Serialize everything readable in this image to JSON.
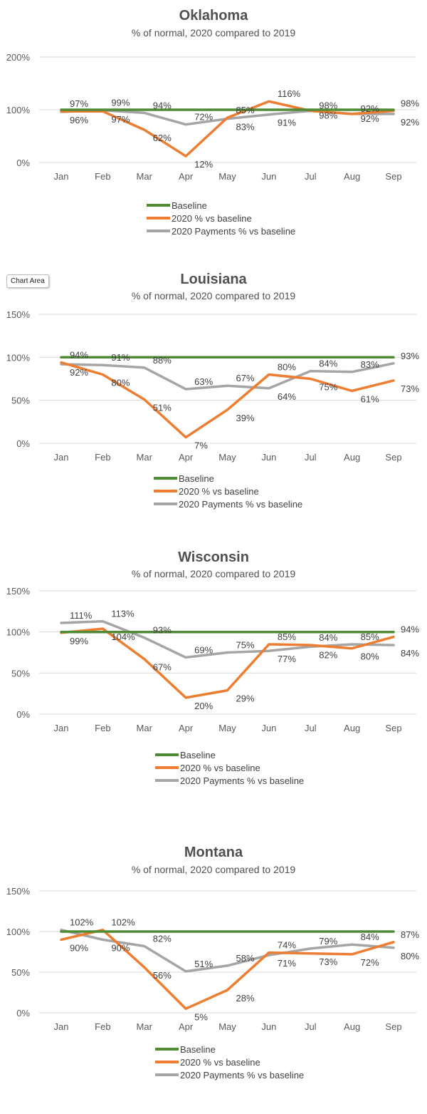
{
  "tooltip": "Chart Area",
  "legend": [
    "Baseline",
    "2020 % vs baseline",
    "2020 Payments % vs baseline"
  ],
  "colors": {
    "baseline": "#4f8a34",
    "orange": "#ed7d31",
    "gray": "#a5a5a5"
  },
  "chart_data": [
    {
      "type": "line",
      "title": "Oklahoma",
      "subtitle": "% of normal, 2020 compared to 2019",
      "categories": [
        "Jan",
        "Feb",
        "Mar",
        "Apr",
        "May",
        "Jun",
        "Jul",
        "Aug",
        "Sep"
      ],
      "ylim": [
        0,
        200
      ],
      "yticks": [
        "0%",
        "100%",
        "200%"
      ],
      "series": [
        {
          "name": "Baseline",
          "values": [
            100,
            100,
            100,
            100,
            100,
            100,
            100,
            100,
            100
          ]
        },
        {
          "name": "2020 % vs baseline",
          "values": [
            97,
            97,
            62,
            12,
            85,
            116,
            98,
            92,
            98
          ]
        },
        {
          "name": "2020 Payments % vs baseline",
          "values": [
            96,
            99,
            94,
            72,
            83,
            91,
            98,
            92,
            92
          ]
        }
      ]
    },
    {
      "type": "line",
      "title": "Louisiana",
      "subtitle": "% of normal, 2020 compared to 2019",
      "categories": [
        "Jan",
        "Feb",
        "Mar",
        "Apr",
        "May",
        "Jun",
        "Jul",
        "Aug",
        "Sep"
      ],
      "ylim": [
        0,
        150
      ],
      "yticks": [
        "0%",
        "50%",
        "100%",
        "150%"
      ],
      "series": [
        {
          "name": "Baseline",
          "values": [
            100,
            100,
            100,
            100,
            100,
            100,
            100,
            100,
            100
          ]
        },
        {
          "name": "2020 % vs baseline",
          "values": [
            94,
            80,
            51,
            7,
            39,
            80,
            75,
            61,
            73
          ]
        },
        {
          "name": "2020 Payments % vs baseline",
          "values": [
            92,
            91,
            88,
            63,
            67,
            64,
            84,
            83,
            93
          ]
        }
      ]
    },
    {
      "type": "line",
      "title": "Wisconsin",
      "subtitle": "% of normal, 2020 compared to 2019",
      "categories": [
        "Jan",
        "Feb",
        "Mar",
        "Apr",
        "May",
        "Jun",
        "Jul",
        "Aug",
        "Sep"
      ],
      "ylim": [
        0,
        150
      ],
      "yticks": [
        "0%",
        "50%",
        "100%",
        "150%"
      ],
      "series": [
        {
          "name": "Baseline",
          "values": [
            100,
            100,
            100,
            100,
            100,
            100,
            100,
            100,
            100
          ]
        },
        {
          "name": "2020 % vs baseline",
          "values": [
            99,
            104,
            67,
            20,
            29,
            85,
            84,
            80,
            94
          ]
        },
        {
          "name": "2020 Payments % vs baseline",
          "values": [
            111,
            113,
            93,
            69,
            75,
            77,
            82,
            85,
            84
          ]
        }
      ]
    },
    {
      "type": "line",
      "title": "Montana",
      "subtitle": "% of normal, 2020 compared to 2019",
      "categories": [
        "Jan",
        "Feb",
        "Mar",
        "Apr",
        "May",
        "Jun",
        "Jul",
        "Aug",
        "Sep"
      ],
      "ylim": [
        0,
        150
      ],
      "yticks": [
        "0%",
        "50%",
        "100%",
        "150%"
      ],
      "series": [
        {
          "name": "Baseline",
          "values": [
            100,
            100,
            100,
            100,
            100,
            100,
            100,
            100,
            100
          ]
        },
        {
          "name": "2020 % vs baseline",
          "values": [
            90,
            102,
            56,
            5,
            28,
            74,
            73,
            72,
            87
          ]
        },
        {
          "name": "2020 Payments % vs baseline",
          "values": [
            102,
            90,
            82,
            51,
            58,
            71,
            79,
            84,
            80
          ]
        }
      ]
    }
  ]
}
